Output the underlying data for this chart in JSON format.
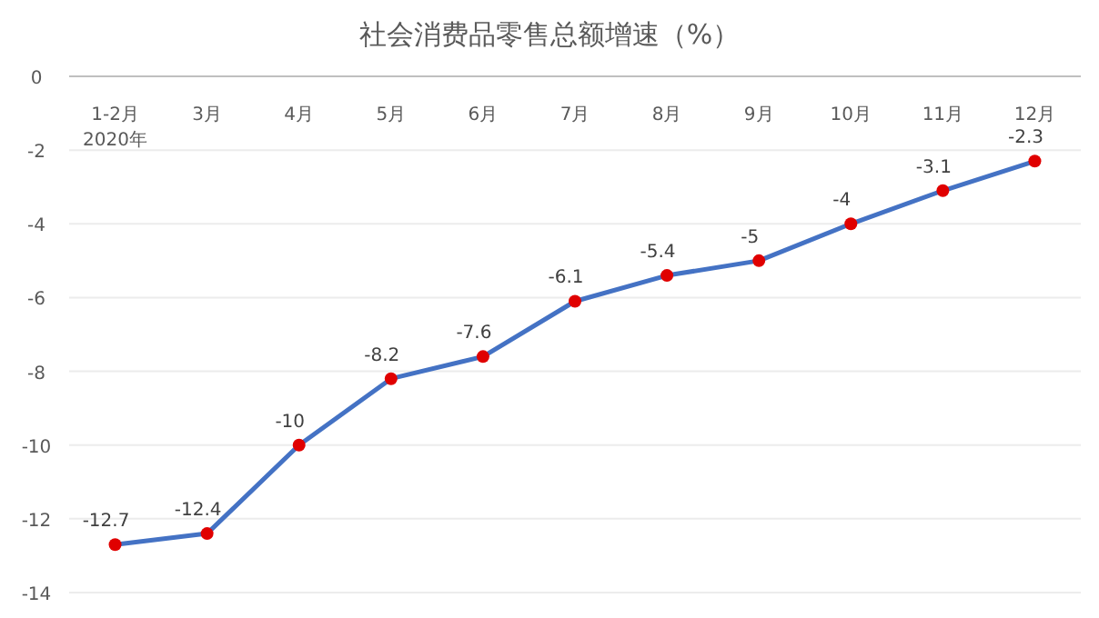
{
  "chart_data": {
    "type": "line",
    "title": "社会消费品零售总额增速（%）",
    "categories": [
      "1-2月",
      "3月",
      "4月",
      "5月",
      "6月",
      "7月",
      "8月",
      "9月",
      "10月",
      "11月",
      "12月"
    ],
    "values": [
      -12.7,
      -12.4,
      -10,
      -8.2,
      -7.6,
      -6.1,
      -5.4,
      -5,
      -4,
      -3.1,
      -2.3
    ],
    "color": "#4472c4",
    "colors": [
      "#e00000",
      "#e00000",
      "#e00000",
      "#e00000",
      "#e00000",
      "#e00000",
      "#e00000",
      "#e00000",
      "#e00000",
      "#e00000",
      "#e00000"
    ],
    "annotations": [
      "2020年"
    ],
    "ylim": [
      -14,
      0
    ],
    "yticks": [
      -14,
      -12,
      -10,
      -8,
      -6,
      -4,
      -2,
      0
    ],
    "grid": "y",
    "marker": "circle",
    "data_labels": true
  }
}
